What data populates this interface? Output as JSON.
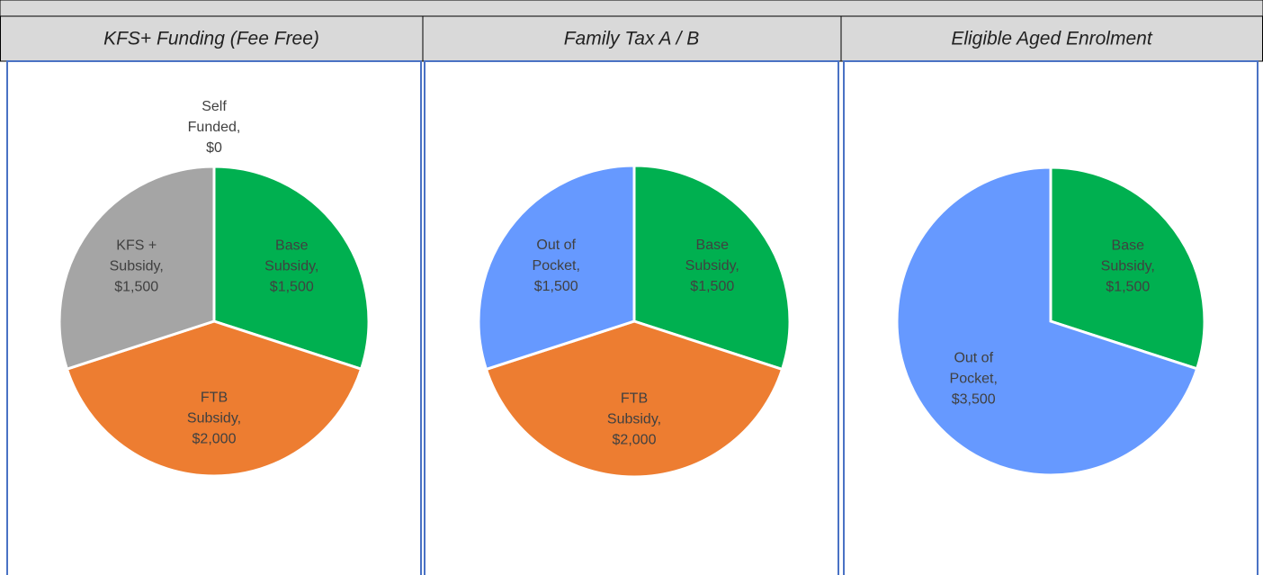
{
  "chart_data": [
    {
      "type": "pie",
      "title": "KFS+ Funding (Fee Free)",
      "values": [
        0,
        1500,
        2000,
        1500
      ],
      "value_labels": [
        "Self Funded, $0",
        "Base Subsidy, $1,500",
        "FTB Subsidy, $2,000",
        "KFS + Subsidy, $1,500"
      ],
      "colors": [
        "#7f7f7f",
        "#00b050",
        "#ed7d31",
        "#a5a5a5"
      ]
    },
    {
      "type": "pie",
      "title": "Family Tax A / B",
      "values": [
        1500,
        2000,
        1500
      ],
      "value_labels": [
        "Base Subsidy, $1,500",
        "FTB Subsidy, $2,000",
        "Out of Pocket, $1,500"
      ],
      "colors": [
        "#00b050",
        "#ed7d31",
        "#6699ff"
      ]
    },
    {
      "type": "pie",
      "title": "Eligible Aged Enrolment",
      "values": [
        1500,
        3500
      ],
      "value_labels": [
        "Base Subsidy, $1,500",
        "Out of Pocket, $3,500"
      ],
      "colors": [
        "#00b050",
        "#6699ff"
      ]
    }
  ]
}
